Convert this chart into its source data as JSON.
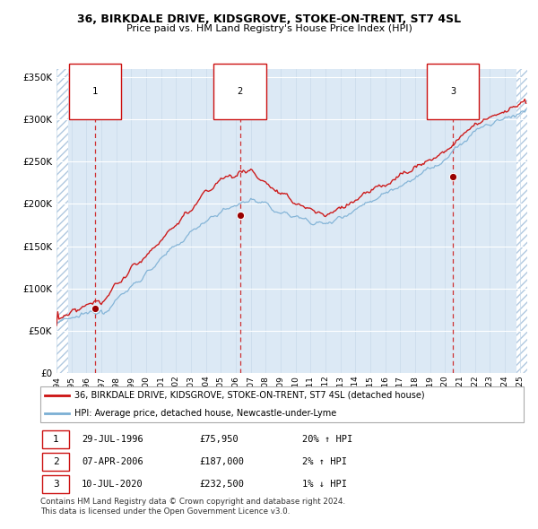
{
  "title": "36, BIRKDALE DRIVE, KIDSGROVE, STOKE-ON-TRENT, ST7 4SL",
  "subtitle": "Price paid vs. HM Land Registry's House Price Index (HPI)",
  "xmin": 1994.0,
  "xmax": 2025.5,
  "ymin": 0,
  "ymax": 360000,
  "yticks": [
    0,
    50000,
    100000,
    150000,
    200000,
    250000,
    300000,
    350000
  ],
  "ytick_labels": [
    "£0",
    "£50K",
    "£100K",
    "£150K",
    "£200K",
    "£250K",
    "£300K",
    "£350K"
  ],
  "xtick_years": [
    1994,
    1995,
    1996,
    1997,
    1998,
    1999,
    2000,
    2001,
    2002,
    2003,
    2004,
    2005,
    2006,
    2007,
    2008,
    2009,
    2010,
    2011,
    2012,
    2013,
    2014,
    2015,
    2016,
    2017,
    2018,
    2019,
    2020,
    2021,
    2022,
    2023,
    2024,
    2025
  ],
  "sale_dates": [
    1996.57,
    2006.27,
    2020.52
  ],
  "sale_prices": [
    75950,
    187000,
    232500
  ],
  "sale_labels": [
    "1",
    "2",
    "3"
  ],
  "hpi_color": "#7bafd4",
  "price_color": "#cc1111",
  "marker_color": "#990000",
  "vline_color": "#cc1111",
  "bg_color": "#dce9f5",
  "legend_label_price": "36, BIRKDALE DRIVE, KIDSGROVE, STOKE-ON-TRENT, ST7 4SL (detached house)",
  "legend_label_hpi": "HPI: Average price, detached house, Newcastle-under-Lyme",
  "table_rows": [
    [
      "1",
      "29-JUL-1996",
      "£75,950",
      "20% ↑ HPI"
    ],
    [
      "2",
      "07-APR-2006",
      "£187,000",
      "2% ↑ HPI"
    ],
    [
      "3",
      "10-JUL-2020",
      "£232,500",
      "1% ↓ HPI"
    ]
  ],
  "footnote1": "Contains HM Land Registry data © Crown copyright and database right 2024.",
  "footnote2": "This data is licensed under the Open Government Licence v3.0."
}
